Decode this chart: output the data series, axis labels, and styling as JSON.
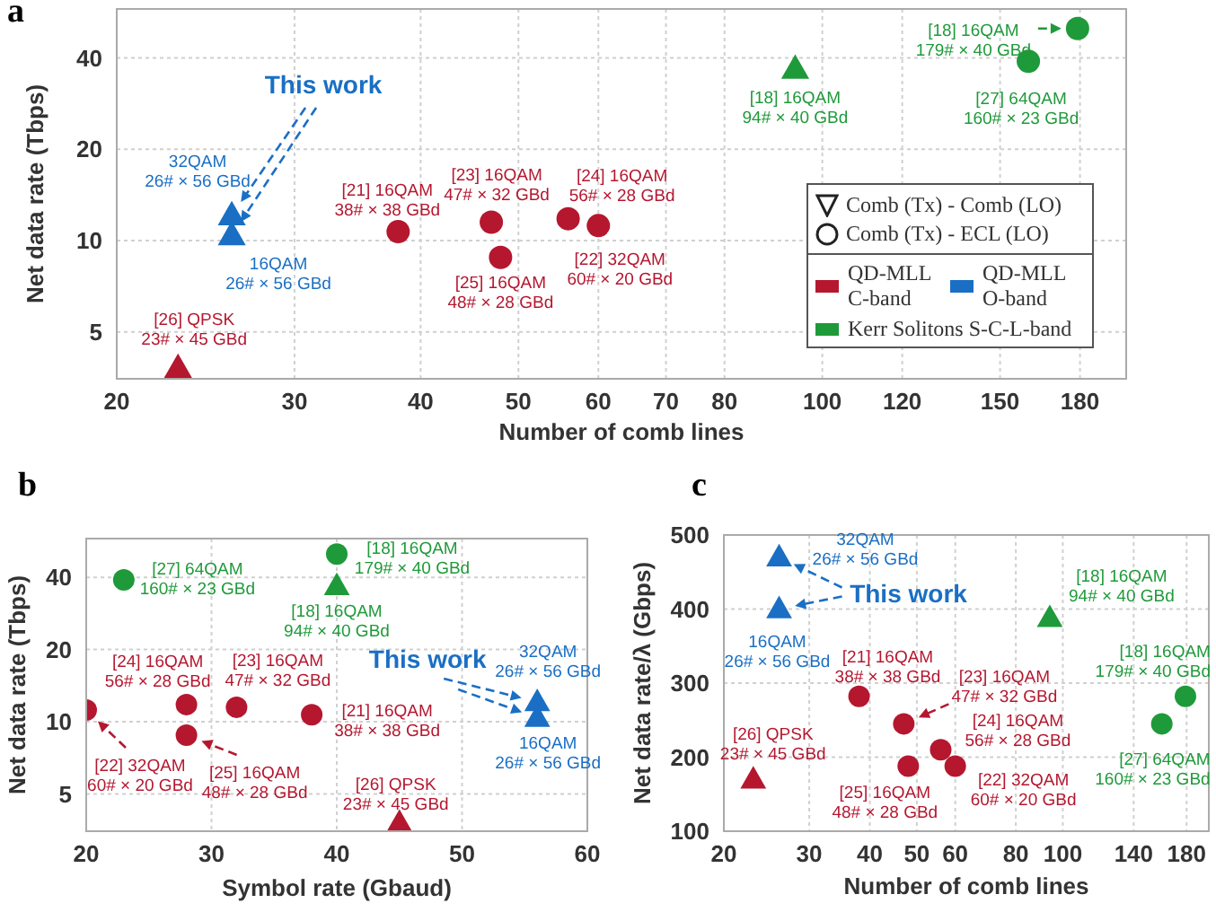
{
  "chart_data": [
    {
      "type": "scatter",
      "title": "a",
      "xlabel": "Number of comb lines",
      "ylabel": "Net data rate (Tbps)",
      "log": "xy",
      "xlim": [
        20,
        200
      ],
      "ylim": [
        3.5,
        58
      ],
      "xticks": [
        20,
        30,
        40,
        50,
        60,
        70,
        80,
        100,
        120,
        150,
        180
      ],
      "yticks": [
        5,
        10,
        20,
        40
      ],
      "grid": true,
      "legend": "bottom right",
      "series": [
        {
          "name": "QD-MLL C-band",
          "color": "#b5172f",
          "marker": "circle",
          "x": [
            38,
            47,
            48,
            56,
            60
          ],
          "values": [
            10.7,
            11.5,
            8.8,
            11.8,
            11.2
          ]
        },
        {
          "color": "#b5172f",
          "marker": "triangle",
          "x": [
            23
          ],
          "values": [
            3.8
          ]
        },
        {
          "name": "QD-MLL O-band",
          "color": "#1a6fc4",
          "marker": "triangle",
          "x": [
            26,
            26
          ],
          "values": [
            12.1,
            10.4
          ]
        },
        {
          "color": "#1f9a3a",
          "marker": "triangle",
          "x": [
            94
          ],
          "values": [
            36.8
          ]
        },
        {
          "name": "Kerr Solitons S-C-L-band",
          "color": "#1f9a3a",
          "marker": "circle",
          "x": [
            160,
            179
          ],
          "values": [
            39,
            50
          ]
        }
      ],
      "annotations": [
        {
          "text": "This work",
          "x": 26,
          "y": 12.1
        },
        {
          "text": "32QAM\n26# × 56 GBd",
          "x": 26,
          "y": 12.1
        },
        {
          "text": "16QAM\n26# × 56 GBd",
          "x": 26,
          "y": 10.4
        },
        {
          "text": "[26] QPSK\n23# × 45 GBd",
          "x": 23,
          "y": 3.8
        },
        {
          "text": "[21] 16QAM\n38# × 38 GBd",
          "x": 38,
          "y": 10.7
        },
        {
          "text": "[23] 16QAM\n47# × 32 GBd",
          "x": 47,
          "y": 11.5
        },
        {
          "text": "[25] 16QAM\n48# × 28 GBd",
          "x": 48,
          "y": 8.8
        },
        {
          "text": "[24] 16QAM\n56# × 28 GBd",
          "x": 56,
          "y": 11.8
        },
        {
          "text": "[22] 32QAM\n60# × 20 GBd",
          "x": 60,
          "y": 11.2
        },
        {
          "text": "[18] 16QAM\n94# × 40 GBd",
          "x": 94,
          "y": 36.8
        },
        {
          "text": "[18] 16QAM\n179# × 40 GBd",
          "x": 179,
          "y": 50
        },
        {
          "text": "[27] 64QAM\n160# × 23 GBd",
          "x": 160,
          "y": 39
        },
        "Comb (Tx) - Comb (LO)",
        "Comb (Tx) - ECL (LO)"
      ]
    },
    {
      "type": "scatter",
      "title": "b",
      "xlabel": "Symbol rate (Gbaud)",
      "ylabel": "Net data rate (Tbps)",
      "log": "y",
      "xlim": [
        20,
        60
      ],
      "ylim": [
        3.5,
        58
      ],
      "xticks": [
        20,
        30,
        40,
        50,
        60
      ],
      "yticks": [
        5,
        10,
        20,
        40
      ],
      "grid": true,
      "series": [
        {
          "color": "#b5172f",
          "marker": "circle",
          "x": [
            38,
            32,
            28,
            28,
            20
          ],
          "values": [
            10.7,
            11.5,
            8.8,
            11.8,
            11.2
          ]
        },
        {
          "color": "#b5172f",
          "marker": "triangle",
          "x": [
            45
          ],
          "values": [
            3.8
          ]
        },
        {
          "color": "#1a6fc4",
          "marker": "triangle",
          "x": [
            56,
            56
          ],
          "values": [
            12.1,
            10.4
          ]
        },
        {
          "color": "#1f9a3a",
          "marker": "triangle",
          "x": [
            40
          ],
          "values": [
            36.8
          ]
        },
        {
          "color": "#1f9a3a",
          "marker": "circle",
          "x": [
            23,
            40
          ],
          "values": [
            39,
            50
          ]
        }
      ],
      "annotations": [
        {
          "text": "This work",
          "x": 56,
          "y": 12.1
        },
        {
          "text": "32QAM\n26# × 56 GBd",
          "x": 56,
          "y": 12.1
        },
        {
          "text": "16QAM\n26# × 56 GBd",
          "x": 56,
          "y": 10.4
        },
        {
          "text": "[26] QPSK\n23# × 45 GBd",
          "x": 45,
          "y": 3.8
        },
        {
          "text": "[21] 16QAM\n38# × 38 GBd",
          "x": 38,
          "y": 10.7
        },
        {
          "text": "[23] 16QAM\n47# × 32 GBd",
          "x": 32,
          "y": 11.5
        },
        {
          "text": "[25] 16QAM\n48# × 28 GBd",
          "x": 28,
          "y": 8.8
        },
        {
          "text": "[24] 16QAM\n56# × 28 GBd",
          "x": 28,
          "y": 11.8
        },
        {
          "text": "[22] 32QAM\n60# × 20 GBd",
          "x": 20,
          "y": 11.2
        },
        {
          "text": "[18] 16QAM\n94# × 40 GBd",
          "x": 40,
          "y": 36.8
        },
        {
          "text": "[18] 16QAM\n179# × 40 GBd",
          "x": 40,
          "y": 50
        },
        {
          "text": "[27] 64QAM\n160# × 23 GBd",
          "x": 23,
          "y": 39
        }
      ]
    },
    {
      "type": "scatter",
      "title": "c",
      "xlabel": "Number of comb lines",
      "ylabel": "Net data rate/λ (Gbps)",
      "log": "x",
      "xlim": [
        20,
        200
      ],
      "ylim": [
        100,
        500
      ],
      "xticks": [
        20,
        30,
        40,
        50,
        60,
        80,
        100,
        140,
        180
      ],
      "yticks": [
        100,
        200,
        300,
        400,
        500
      ],
      "grid": true,
      "series": [
        {
          "color": "#b5172f",
          "marker": "circle",
          "x": [
            38,
            47,
            48,
            56,
            60
          ],
          "values": [
            282,
            245,
            188,
            210,
            188
          ]
        },
        {
          "color": "#b5172f",
          "marker": "triangle",
          "x": [
            23
          ],
          "values": [
            170
          ]
        },
        {
          "color": "#1a6fc4",
          "marker": "triangle",
          "x": [
            26,
            26
          ],
          "values": [
            470,
            400
          ]
        },
        {
          "color": "#1f9a3a",
          "marker": "triangle",
          "x": [
            94
          ],
          "values": [
            388
          ]
        },
        {
          "color": "#1f9a3a",
          "marker": "circle",
          "x": [
            160,
            179
          ],
          "values": [
            245,
            282
          ]
        }
      ],
      "annotations": [
        {
          "text": "This work",
          "x": 26,
          "y": 400
        },
        {
          "text": "32QAM\n26# × 56 GBd",
          "x": 26,
          "y": 470
        },
        {
          "text": "16QAM\n26# × 56 GBd",
          "x": 26,
          "y": 400
        },
        {
          "text": "[26] QPSK\n23# × 45 GBd",
          "x": 23,
          "y": 170
        },
        {
          "text": "[21] 16QAM\n38# × 38 GBd",
          "x": 38,
          "y": 282
        },
        {
          "text": "[23] 16QAM\n47# × 32 GBd",
          "x": 47,
          "y": 245
        },
        {
          "text": "[25] 16QAM\n48# × 28 GBd",
          "x": 48,
          "y": 188
        },
        {
          "text": "[24] 16QAM\n56# × 28 GBd",
          "x": 56,
          "y": 210
        },
        {
          "text": "[22] 32QAM\n60# × 20 GBd",
          "x": 60,
          "y": 188
        },
        {
          "text": "[18] 16QAM\n94# × 40 GBd",
          "x": 94,
          "y": 388
        },
        {
          "text": "[18] 16QAM\n179# × 40 GBd",
          "x": 179,
          "y": 282
        },
        {
          "text": "[27] 64QAM\n160# × 23 GBd",
          "x": 160,
          "y": 245
        }
      ]
    }
  ]
}
